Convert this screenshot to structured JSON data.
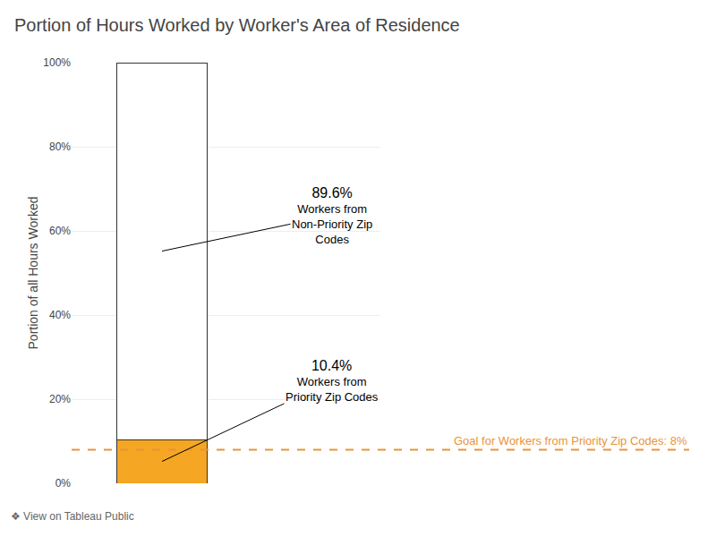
{
  "chart_data": {
    "type": "bar",
    "title": "Portion of Hours Worked by Worker's Area of Residence",
    "ylabel": "Portion of all Hours Worked",
    "categories": [
      null
    ],
    "stacked": true,
    "data_labels": true,
    "tick_labels": "y",
    "series": [
      {
        "name": "Workers from\nPriority Zip Codes",
        "color": "#F5A623",
        "values": [
          0.104
        ],
        "value_labels": [
          "10.4%"
        ]
      },
      {
        "name": "Workers from\nNon-Priority Zip\nCodes",
        "color": "#FFFFFF",
        "values": [
          0.896
        ],
        "value_labels": [
          "89.6%"
        ]
      }
    ],
    "ylim": [
      0,
      1.0
    ],
    "yticks": [
      {
        "value": 0,
        "label": "0%"
      },
      {
        "value": 0.2,
        "label": "20%"
      },
      {
        "value": 0.4,
        "label": "40%"
      },
      {
        "value": 0.6,
        "label": "60%"
      },
      {
        "value": 0.8,
        "label": "80%"
      },
      {
        "value": 1.0,
        "label": "100%"
      }
    ],
    "grid": true,
    "goal": {
      "value": 0.08,
      "label": "Goal for Workers from Priority Zip Codes: 8%",
      "color": "#E8943A"
    },
    "footer": "❖ View on Tableau Public"
  }
}
